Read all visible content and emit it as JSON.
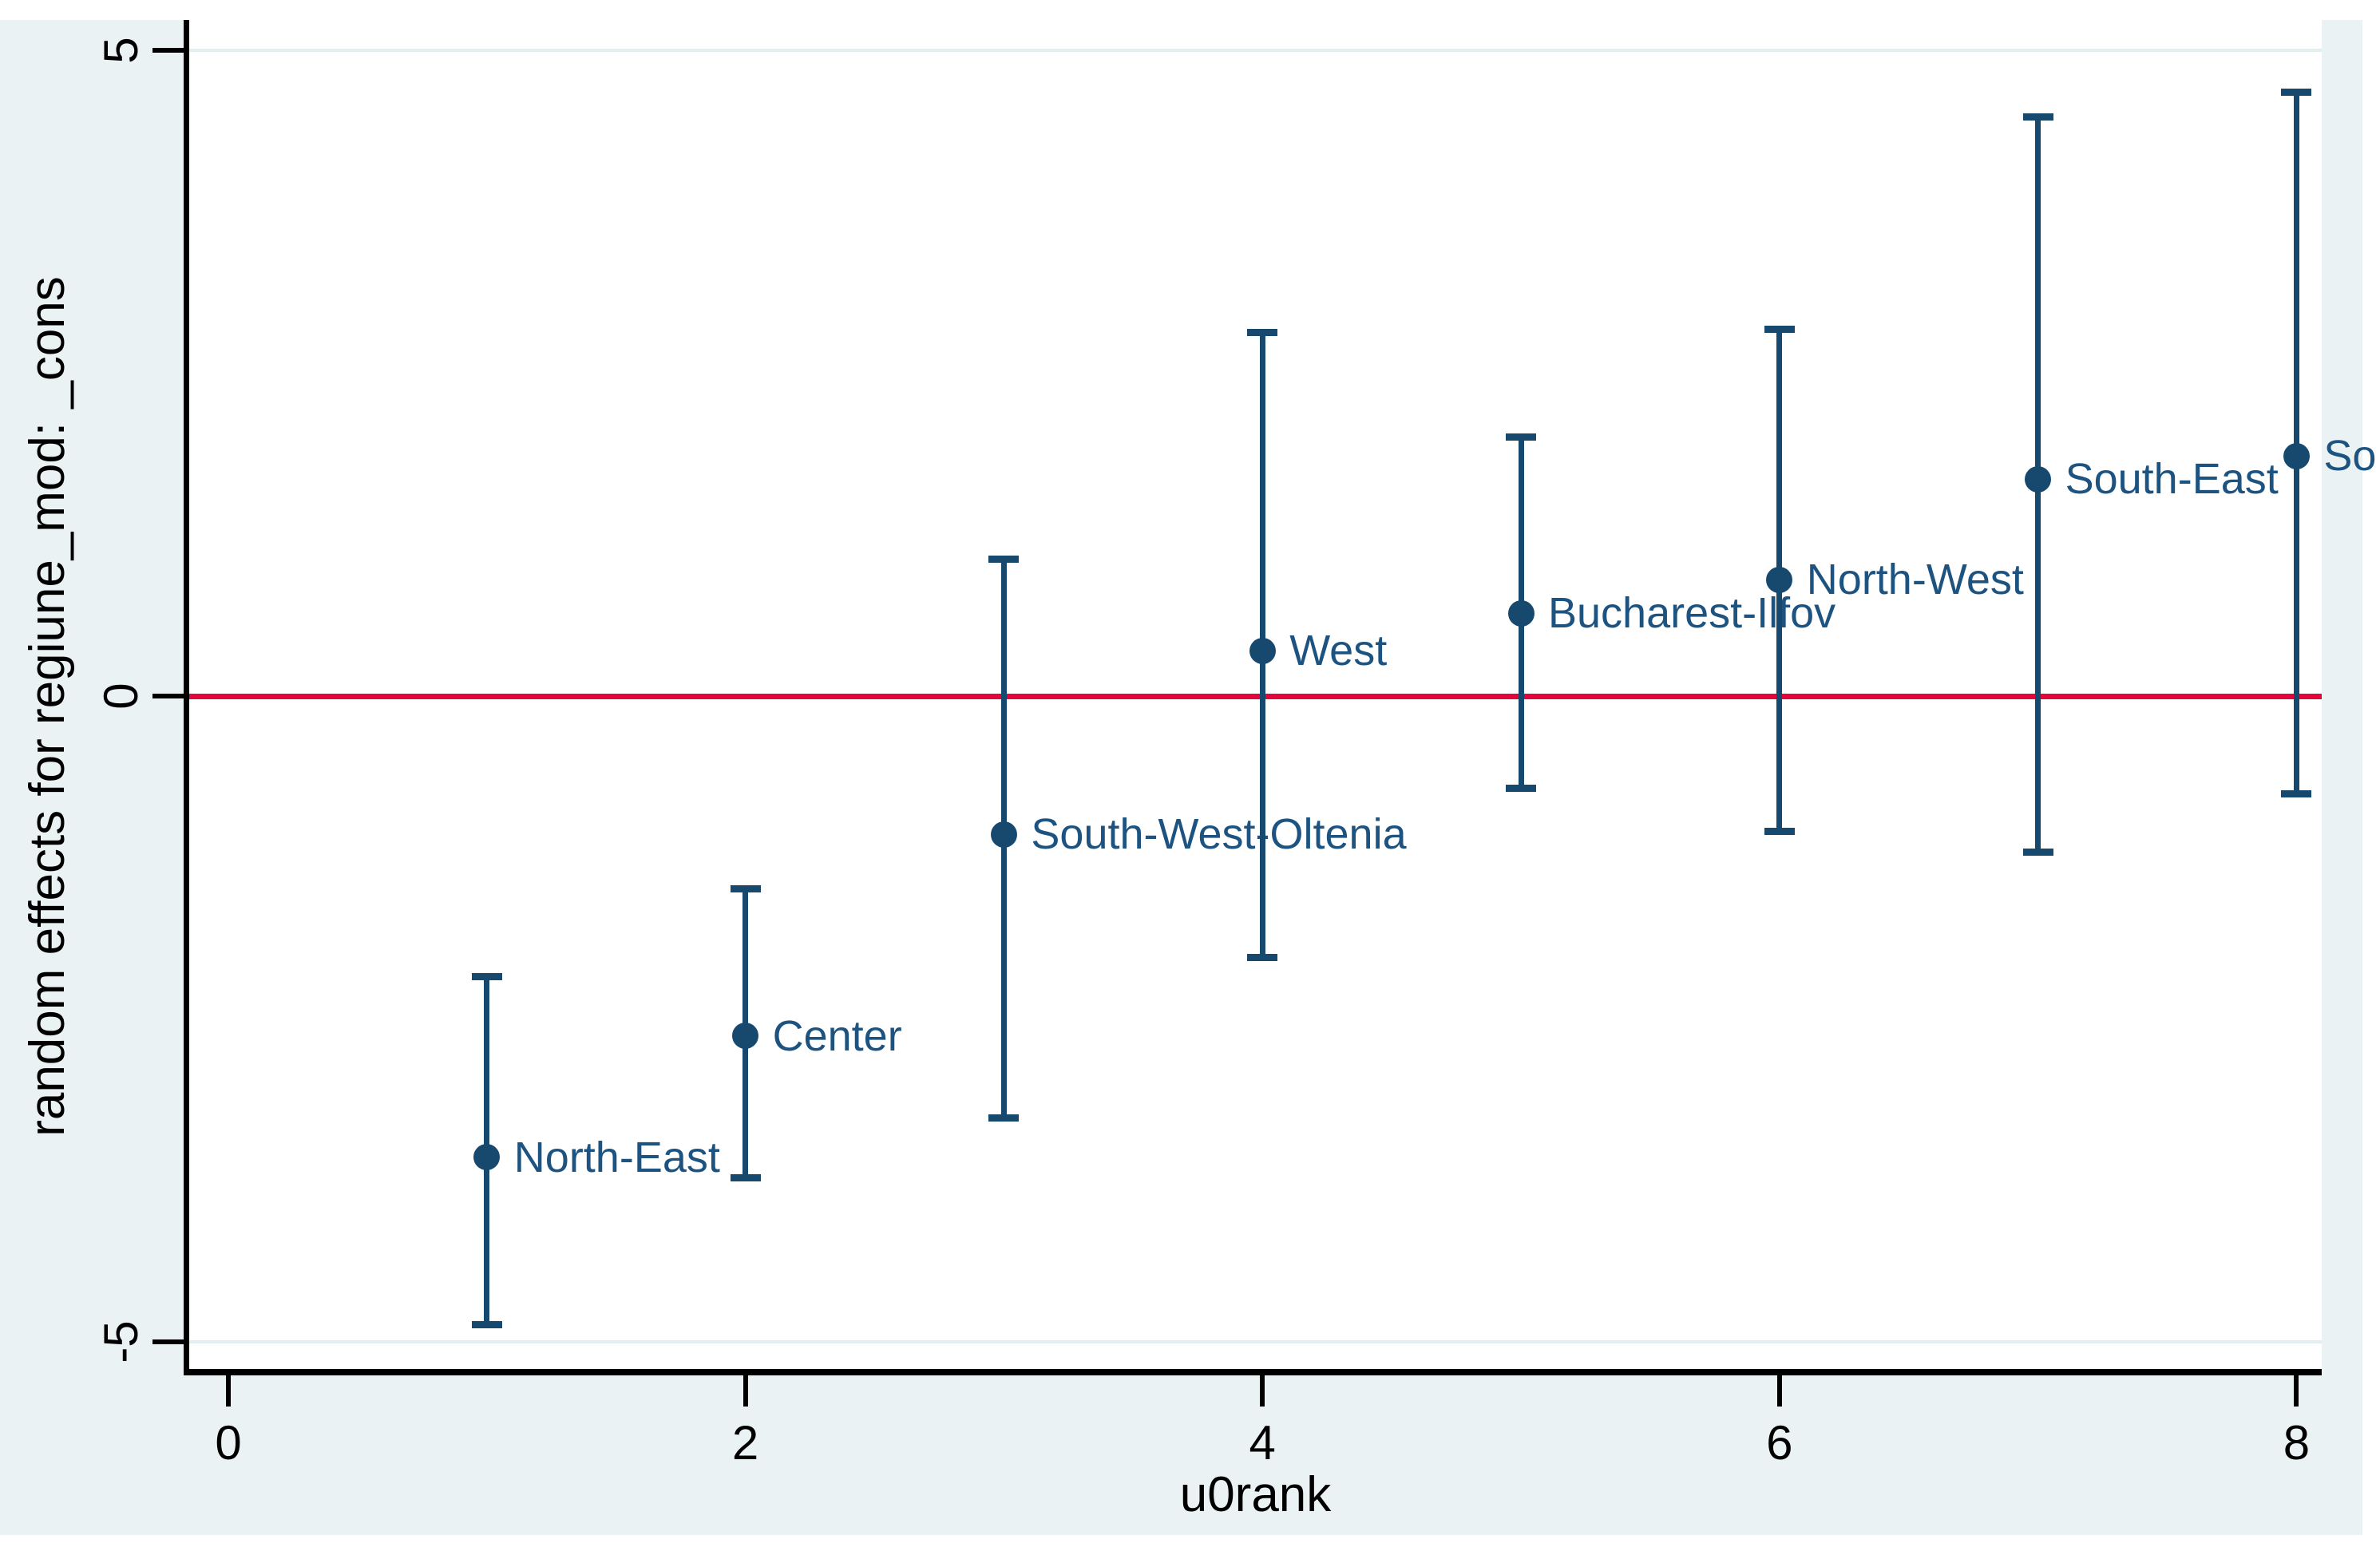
{
  "chart_data": {
    "type": "scatter",
    "title": "",
    "xlabel": "u0rank",
    "ylabel": "random effects for regiune_mod: _cons",
    "xlim": [
      -0.15,
      8.25
    ],
    "ylim": [
      -5.25,
      5.25
    ],
    "x_ticks": [
      0,
      2,
      4,
      6,
      8
    ],
    "y_ticks": [
      5,
      0,
      -5
    ],
    "grid_values": [
      5,
      -5
    ],
    "zero_line_value": 0,
    "legend": "none",
    "points": [
      {
        "x": 1,
        "label": "North-East",
        "estimate": -3.57,
        "ci_low": -4.87,
        "ci_high": -2.17
      },
      {
        "x": 2,
        "label": "Center",
        "estimate": -2.63,
        "ci_low": -3.73,
        "ci_high": -1.49
      },
      {
        "x": 3,
        "label": "South-West-Oltenia",
        "estimate": -1.07,
        "ci_low": -3.27,
        "ci_high": 1.06
      },
      {
        "x": 4,
        "label": "West",
        "estimate": 0.35,
        "ci_low": -2.03,
        "ci_high": 2.82
      },
      {
        "x": 5,
        "label": "Bucharest-Ilfov",
        "estimate": 0.64,
        "ci_low": -0.72,
        "ci_high": 2.01
      },
      {
        "x": 6,
        "label": "North-West",
        "estimate": 0.9,
        "ci_low": -1.05,
        "ci_high": 2.84
      },
      {
        "x": 7,
        "label": "South-East",
        "estimate": 1.68,
        "ci_low": -1.21,
        "ci_high": 4.49
      },
      {
        "x": 8,
        "label": "So",
        "estimate": 1.86,
        "ci_low": -0.76,
        "ci_high": 4.68
      }
    ],
    "colors": {
      "point": "#17496f",
      "point_label": "#1d5380",
      "zero_line": "#e3063a",
      "grid": "#e3eef1",
      "axis": "#000000",
      "figure_background": "#eaf2f3",
      "plot_background": "#ffffff"
    }
  }
}
